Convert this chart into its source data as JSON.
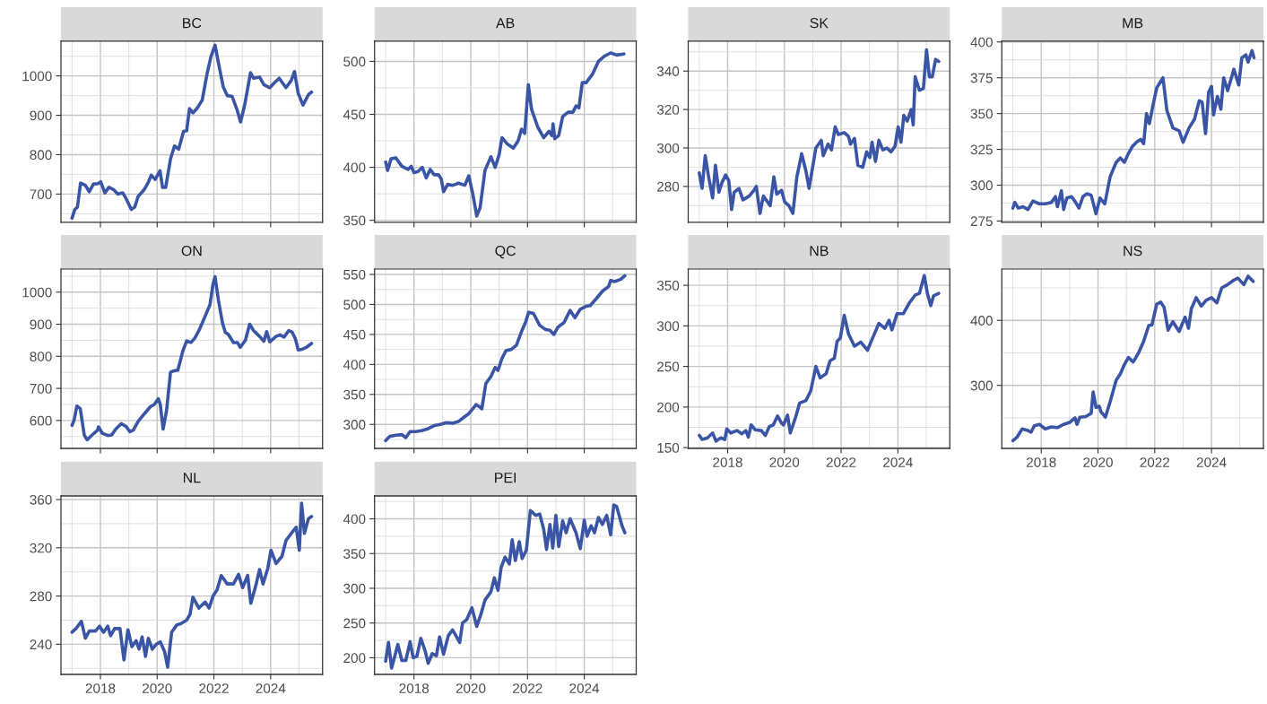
{
  "chart_data": [
    {
      "type": "line",
      "title": "BC",
      "color": "#3a55a5",
      "grid": true,
      "tick_labels": "y",
      "xlim": [
        2016.61,
        2025.83
      ],
      "ylim": [
        628,
        1088
      ],
      "xticks": [
        2018,
        2020,
        2022,
        2024,
        {
          "value": 2017,
          "label": null
        },
        {
          "value": 2019,
          "label": null
        },
        {
          "value": 2021,
          "label": null
        },
        {
          "value": 2023,
          "label": null
        },
        {
          "value": 2025,
          "label": null
        }
      ],
      "yticks": [
        700,
        800,
        900,
        1000,
        {
          "value": 650,
          "label": null
        },
        {
          "value": 750,
          "label": null
        },
        {
          "value": 850,
          "label": null
        },
        {
          "value": 950,
          "label": null
        },
        {
          "value": 1050,
          "label": null
        }
      ],
      "x": [
        2017.0,
        2017.1,
        2017.19,
        2017.3,
        2017.47,
        2017.61,
        2017.76,
        2017.9,
        2018.01,
        2018.16,
        2018.3,
        2018.47,
        2018.61,
        2018.79,
        2018.9,
        2019.09,
        2019.21,
        2019.33,
        2019.54,
        2019.69,
        2019.79,
        2019.93,
        2020.1,
        2020.19,
        2020.3,
        2020.47,
        2020.61,
        2020.76,
        2020.93,
        2021.04,
        2021.14,
        2021.26,
        2021.4,
        2021.59,
        2021.76,
        2021.9,
        2022.04,
        2022.19,
        2022.33,
        2022.47,
        2022.64,
        2022.83,
        2022.94,
        2023.09,
        2023.29,
        2023.4,
        2023.61,
        2023.76,
        2023.97,
        2024.11,
        2024.3,
        2024.54,
        2024.73,
        2024.84,
        2024.97,
        2025.14,
        2025.33,
        2025.44
      ],
      "values": [
        639,
        661,
        667,
        728,
        722,
        706,
        726,
        726,
        731,
        703,
        717,
        711,
        700,
        703,
        689,
        661,
        667,
        694,
        711,
        730,
        748,
        737,
        759,
        717,
        717,
        789,
        822,
        814,
        859,
        861,
        917,
        906,
        917,
        939,
        1006,
        1050,
        1078,
        1022,
        972,
        950,
        948,
        911,
        883,
        928,
        1008,
        994,
        997,
        978,
        970,
        981,
        994,
        970,
        989,
        1011,
        956,
        926,
        952,
        959
      ]
    },
    {
      "type": "line",
      "title": "AB",
      "color": "#3a55a5",
      "grid": true,
      "tick_labels": "y",
      "xlim": [
        2016.61,
        2025.83
      ],
      "ylim": [
        348,
        519
      ],
      "xticks": [
        2018,
        2020,
        2022,
        2024,
        {
          "value": 2017,
          "label": null
        },
        {
          "value": 2019,
          "label": null
        },
        {
          "value": 2021,
          "label": null
        },
        {
          "value": 2023,
          "label": null
        },
        {
          "value": 2025,
          "label": null
        }
      ],
      "yticks": [
        350,
        400,
        450,
        500,
        {
          "value": 375,
          "label": null
        },
        {
          "value": 425,
          "label": null
        },
        {
          "value": 475,
          "label": null
        }
      ],
      "x": [
        2017.0,
        2017.07,
        2017.19,
        2017.36,
        2017.57,
        2017.79,
        2017.9,
        2018.0,
        2018.14,
        2018.29,
        2018.43,
        2018.57,
        2018.71,
        2018.86,
        2018.96,
        2019.04,
        2019.19,
        2019.36,
        2019.57,
        2019.79,
        2019.93,
        2020.07,
        2020.21,
        2020.33,
        2020.5,
        2020.71,
        2020.86,
        2021.0,
        2021.1,
        2021.29,
        2021.5,
        2021.67,
        2021.79,
        2021.9,
        2022.03,
        2022.14,
        2022.36,
        2022.57,
        2022.76,
        2022.86,
        2022.9,
        2022.96,
        2023.1,
        2023.24,
        2023.43,
        2023.6,
        2023.71,
        2023.81,
        2023.93,
        2024.07,
        2024.29,
        2024.5,
        2024.71,
        2024.93,
        2025.14,
        2025.4
      ],
      "values": [
        405,
        397,
        408,
        409,
        401,
        398,
        401,
        395,
        396,
        400,
        390,
        398,
        393,
        393,
        389,
        377,
        384,
        383,
        385,
        383,
        392,
        375,
        354,
        362,
        397,
        410,
        400,
        412,
        428,
        422,
        418,
        425,
        436,
        432,
        478,
        455,
        438,
        428,
        434,
        430,
        441,
        427,
        430,
        448,
        452,
        452,
        458,
        456,
        480,
        480,
        488,
        500,
        505,
        508,
        506,
        507
      ]
    },
    {
      "type": "line",
      "title": "SK",
      "color": "#3a55a5",
      "grid": true,
      "tick_labels": "y",
      "xlim": [
        2016.61,
        2025.83
      ],
      "ylim": [
        261.3,
        355.5
      ],
      "xticks": [
        2018,
        2020,
        2022,
        2024,
        {
          "value": 2017,
          "label": null
        },
        {
          "value": 2019,
          "label": null
        },
        {
          "value": 2021,
          "label": null
        },
        {
          "value": 2023,
          "label": null
        },
        {
          "value": 2025,
          "label": null
        }
      ],
      "yticks": [
        280,
        300,
        320,
        340,
        {
          "value": 270,
          "label": null
        },
        {
          "value": 290,
          "label": null
        },
        {
          "value": 310,
          "label": null
        },
        {
          "value": 330,
          "label": null
        },
        {
          "value": 350,
          "label": null
        }
      ],
      "x": [
        2017.0,
        2017.1,
        2017.21,
        2017.33,
        2017.47,
        2017.57,
        2017.69,
        2017.8,
        2017.93,
        2018.04,
        2018.14,
        2018.23,
        2018.4,
        2018.54,
        2018.76,
        2018.93,
        2019.01,
        2019.14,
        2019.26,
        2019.5,
        2019.63,
        2019.73,
        2019.9,
        2020.01,
        2020.16,
        2020.3,
        2020.44,
        2020.61,
        2020.76,
        2020.87,
        2021.11,
        2021.3,
        2021.37,
        2021.54,
        2021.66,
        2021.79,
        2021.9,
        2022.11,
        2022.26,
        2022.33,
        2022.47,
        2022.59,
        2022.76,
        2022.9,
        2023.01,
        2023.09,
        2023.21,
        2023.33,
        2023.47,
        2023.61,
        2023.76,
        2023.9,
        2024.01,
        2024.11,
        2024.21,
        2024.33,
        2024.47,
        2024.54,
        2024.61,
        2024.76,
        2024.9,
        2025.01,
        2025.11,
        2025.21,
        2025.33,
        2025.44
      ],
      "values": [
        287,
        279,
        296,
        285,
        274,
        291,
        277,
        282,
        286,
        283,
        268,
        277,
        279,
        273,
        275,
        278,
        280,
        266,
        275,
        270,
        285,
        276,
        278,
        272,
        270,
        266,
        285,
        297,
        288,
        279,
        300,
        304,
        296,
        302,
        299,
        311,
        307,
        308,
        306,
        302,
        305,
        291,
        290,
        298,
        295,
        303,
        293,
        304,
        299,
        300,
        298,
        301,
        311,
        303,
        317,
        314,
        320,
        312,
        337,
        330,
        331,
        351,
        337,
        337,
        346,
        345
      ]
    },
    {
      "type": "line",
      "title": "MB",
      "color": "#3a55a5",
      "grid": true,
      "tick_labels": "y",
      "xlim": [
        2016.61,
        2025.83
      ],
      "ylim": [
        274,
        400.5
      ],
      "xticks": [
        2018,
        2020,
        2022,
        2024,
        {
          "value": 2017,
          "label": null
        },
        {
          "value": 2019,
          "label": null
        },
        {
          "value": 2021,
          "label": null
        },
        {
          "value": 2023,
          "label": null
        },
        {
          "value": 2025,
          "label": null
        }
      ],
      "yticks": [
        275,
        300,
        325,
        350,
        375,
        400,
        {
          "value": 287.5,
          "label": null
        },
        {
          "value": 312.5,
          "label": null
        },
        {
          "value": 337.5,
          "label": null
        },
        {
          "value": 362.5,
          "label": null
        },
        {
          "value": 387.5,
          "label": null
        }
      ],
      "x": [
        2017.0,
        2017.07,
        2017.19,
        2017.36,
        2017.53,
        2017.71,
        2017.93,
        2018.14,
        2018.36,
        2018.5,
        2018.57,
        2018.71,
        2018.79,
        2018.9,
        2019.07,
        2019.21,
        2019.33,
        2019.47,
        2019.61,
        2019.76,
        2019.93,
        2020.07,
        2020.24,
        2020.43,
        2020.64,
        2020.79,
        2020.93,
        2021.07,
        2021.21,
        2021.36,
        2021.5,
        2021.61,
        2021.71,
        2021.81,
        2021.93,
        2022.07,
        2022.29,
        2022.43,
        2022.64,
        2022.86,
        2023.0,
        2023.21,
        2023.4,
        2023.57,
        2023.67,
        2023.79,
        2023.9,
        2024.0,
        2024.07,
        2024.21,
        2024.33,
        2024.43,
        2024.57,
        2024.79,
        2024.96,
        2025.07,
        2025.21,
        2025.29,
        2025.43,
        2025.5
      ],
      "values": [
        284,
        288,
        284,
        285,
        283,
        289,
        287,
        287,
        288,
        292,
        285,
        296,
        283,
        291,
        292,
        288,
        284,
        292,
        294,
        293,
        280,
        291,
        287,
        306,
        316,
        319,
        316,
        322,
        327,
        330,
        332,
        329,
        350,
        343,
        355,
        368,
        375,
        352,
        340,
        338,
        330,
        340,
        346,
        359,
        358,
        336,
        365,
        369,
        349,
        362,
        353,
        375,
        366,
        381,
        370,
        389,
        391,
        386,
        394,
        389
      ]
    },
    {
      "type": "line",
      "title": "ON",
      "color": "#3a55a5",
      "grid": true,
      "tick_labels": "y",
      "xlim": [
        2016.61,
        2025.83
      ],
      "ylim": [
        513,
        1072
      ],
      "xticks": [
        2018,
        2020,
        2022,
        2024,
        {
          "value": 2017,
          "label": null
        },
        {
          "value": 2019,
          "label": null
        },
        {
          "value": 2021,
          "label": null
        },
        {
          "value": 2023,
          "label": null
        },
        {
          "value": 2025,
          "label": null
        }
      ],
      "yticks": [
        600,
        700,
        800,
        900,
        1000,
        {
          "value": 550,
          "label": null
        },
        {
          "value": 650,
          "label": null
        },
        {
          "value": 750,
          "label": null
        },
        {
          "value": 850,
          "label": null
        },
        {
          "value": 950,
          "label": null
        },
        {
          "value": 1050,
          "label": null
        }
      ],
      "x": [
        2017.0,
        2017.07,
        2017.17,
        2017.29,
        2017.43,
        2017.53,
        2017.71,
        2017.9,
        2017.93,
        2018.07,
        2018.26,
        2018.4,
        2018.54,
        2018.73,
        2018.9,
        2019.04,
        2019.16,
        2019.33,
        2019.54,
        2019.76,
        2019.9,
        2020.04,
        2020.11,
        2020.21,
        2020.33,
        2020.47,
        2020.59,
        2020.73,
        2020.9,
        2021.04,
        2021.19,
        2021.33,
        2021.47,
        2021.69,
        2021.86,
        2021.97,
        2022.04,
        2022.16,
        2022.3,
        2022.4,
        2022.51,
        2022.69,
        2022.83,
        2022.93,
        2023.11,
        2023.26,
        2023.4,
        2023.61,
        2023.76,
        2023.86,
        2023.97,
        2024.19,
        2024.33,
        2024.47,
        2024.64,
        2024.76,
        2024.87,
        2024.97,
        2025.11,
        2025.26,
        2025.44
      ],
      "values": [
        585,
        600,
        645,
        637,
        555,
        540,
        555,
        570,
        580,
        560,
        553,
        555,
        573,
        590,
        582,
        565,
        570,
        597,
        620,
        643,
        650,
        668,
        650,
        573,
        630,
        750,
        755,
        757,
        815,
        848,
        843,
        857,
        880,
        925,
        960,
        1025,
        1048,
        975,
        905,
        875,
        868,
        843,
        843,
        828,
        850,
        900,
        880,
        862,
        847,
        877,
        845,
        862,
        867,
        860,
        880,
        875,
        855,
        820,
        822,
        828,
        840
      ]
    },
    {
      "type": "line",
      "title": "QC",
      "color": "#3a55a5",
      "grid": true,
      "tick_labels": "y",
      "xlim": [
        2016.61,
        2025.83
      ],
      "ylim": [
        260,
        559
      ],
      "xticks": [
        2018,
        2020,
        2022,
        2024,
        {
          "value": 2017,
          "label": null
        },
        {
          "value": 2019,
          "label": null
        },
        {
          "value": 2021,
          "label": null
        },
        {
          "value": 2023,
          "label": null
        },
        {
          "value": 2025,
          "label": null
        }
      ],
      "yticks": [
        300,
        350,
        400,
        450,
        500,
        550,
        {
          "value": 275,
          "label": null
        },
        {
          "value": 325,
          "label": null
        },
        {
          "value": 375,
          "label": null
        },
        {
          "value": 425,
          "label": null
        },
        {
          "value": 475,
          "label": null
        },
        {
          "value": 525,
          "label": null
        }
      ],
      "x": [
        2017.0,
        2017.14,
        2017.36,
        2017.57,
        2017.71,
        2017.86,
        2018.07,
        2018.29,
        2018.5,
        2018.71,
        2018.93,
        2019.14,
        2019.36,
        2019.57,
        2019.76,
        2019.93,
        2020.07,
        2020.19,
        2020.29,
        2020.39,
        2020.53,
        2020.71,
        2020.86,
        2020.96,
        2021.1,
        2021.24,
        2021.43,
        2021.61,
        2021.79,
        2021.93,
        2022.04,
        2022.21,
        2022.43,
        2022.64,
        2022.79,
        2022.93,
        2023.07,
        2023.29,
        2023.5,
        2023.67,
        2023.86,
        2024.07,
        2024.21,
        2024.43,
        2024.64,
        2024.86,
        2024.93,
        2025.07,
        2025.29,
        2025.43
      ],
      "values": [
        273,
        280,
        282,
        283,
        278,
        288,
        288,
        290,
        293,
        298,
        300,
        303,
        302,
        305,
        312,
        318,
        326,
        333,
        330,
        326,
        368,
        380,
        395,
        390,
        410,
        423,
        425,
        432,
        455,
        470,
        487,
        485,
        465,
        458,
        457,
        450,
        462,
        470,
        490,
        478,
        492,
        497,
        498,
        510,
        522,
        530,
        540,
        538,
        542,
        548
      ]
    },
    {
      "type": "line",
      "title": "NB",
      "color": "#3a55a5",
      "grid": true,
      "xlim": [
        2016.61,
        2025.83
      ],
      "ylim": [
        149,
        370
      ],
      "xticks": [
        2018,
        2020,
        2022,
        2024,
        {
          "value": 2017,
          "label": null
        },
        {
          "value": 2019,
          "label": null
        },
        {
          "value": 2021,
          "label": null
        },
        {
          "value": 2023,
          "label": null
        },
        {
          "value": 2025,
          "label": null
        }
      ],
      "yticks": [
        150,
        200,
        250,
        300,
        350,
        {
          "value": 175,
          "label": null
        },
        {
          "value": 225,
          "label": null
        },
        {
          "value": 275,
          "label": null
        },
        {
          "value": 325,
          "label": null
        }
      ],
      "x": [
        2017.0,
        2017.1,
        2017.29,
        2017.47,
        2017.59,
        2017.76,
        2017.9,
        2017.97,
        2018.11,
        2018.33,
        2018.5,
        2018.64,
        2018.73,
        2018.83,
        2018.97,
        2019.19,
        2019.33,
        2019.47,
        2019.61,
        2019.76,
        2019.9,
        2019.97,
        2020.11,
        2020.21,
        2020.4,
        2020.54,
        2020.76,
        2020.93,
        2021.11,
        2021.26,
        2021.47,
        2021.61,
        2021.76,
        2021.86,
        2021.97,
        2022.11,
        2022.26,
        2022.47,
        2022.69,
        2022.93,
        2023.11,
        2023.33,
        2023.54,
        2023.69,
        2023.79,
        2023.97,
        2024.19,
        2024.4,
        2024.61,
        2024.76,
        2024.93,
        2025.04,
        2025.16,
        2025.26,
        2025.44
      ],
      "values": [
        165,
        160,
        162,
        168,
        158,
        162,
        160,
        173,
        168,
        171,
        167,
        171,
        163,
        178,
        172,
        171,
        165,
        176,
        178,
        189,
        180,
        178,
        190,
        168,
        188,
        205,
        208,
        220,
        250,
        236,
        241,
        257,
        260,
        281,
        285,
        313,
        290,
        275,
        280,
        270,
        285,
        303,
        297,
        307,
        295,
        315,
        315,
        328,
        338,
        340,
        362,
        340,
        325,
        337,
        340
      ]
    },
    {
      "type": "line",
      "title": "NS",
      "color": "#3a55a5",
      "grid": true,
      "xlim": [
        2016.61,
        2025.83
      ],
      "ylim": [
        203,
        479
      ],
      "xticks": [
        2018,
        2020,
        2022,
        2024,
        {
          "value": 2017,
          "label": null
        },
        {
          "value": 2019,
          "label": null
        },
        {
          "value": 2021,
          "label": null
        },
        {
          "value": 2023,
          "label": null
        },
        {
          "value": 2025,
          "label": null
        }
      ],
      "yticks": [
        300,
        400,
        {
          "value": 250,
          "label": null
        },
        {
          "value": 350,
          "label": null
        },
        {
          "value": 450,
          "label": null
        }
      ],
      "x": [
        2017.0,
        2017.14,
        2017.33,
        2017.5,
        2017.64,
        2017.76,
        2017.93,
        2018.14,
        2018.36,
        2018.57,
        2018.79,
        2019.0,
        2019.19,
        2019.26,
        2019.36,
        2019.57,
        2019.76,
        2019.83,
        2019.93,
        2020.04,
        2020.11,
        2020.26,
        2020.43,
        2020.64,
        2020.79,
        2020.93,
        2021.07,
        2021.24,
        2021.43,
        2021.61,
        2021.79,
        2021.9,
        2022.07,
        2022.21,
        2022.33,
        2022.47,
        2022.64,
        2022.86,
        2023.07,
        2023.19,
        2023.29,
        2023.46,
        2023.64,
        2023.81,
        2024.0,
        2024.19,
        2024.36,
        2024.57,
        2024.79,
        2024.93,
        2025.14,
        2025.29,
        2025.47
      ],
      "values": [
        215,
        220,
        233,
        231,
        228,
        238,
        240,
        233,
        236,
        235,
        240,
        243,
        250,
        240,
        251,
        252,
        257,
        290,
        266,
        268,
        259,
        251,
        275,
        308,
        318,
        332,
        343,
        336,
        350,
        368,
        392,
        393,
        425,
        428,
        420,
        385,
        398,
        383,
        405,
        388,
        418,
        435,
        422,
        431,
        435,
        427,
        450,
        455,
        462,
        465,
        455,
        468,
        460
      ]
    },
    {
      "type": "line",
      "title": "NL",
      "color": "#3a55a5",
      "grid": true,
      "xlim": [
        2016.61,
        2025.83
      ],
      "ylim": [
        215,
        363
      ],
      "xticks": [
        2018,
        2020,
        2022,
        2024,
        {
          "value": 2017,
          "label": null
        },
        {
          "value": 2019,
          "label": null
        },
        {
          "value": 2021,
          "label": null
        },
        {
          "value": 2023,
          "label": null
        },
        {
          "value": 2025,
          "label": null
        }
      ],
      "yticks": [
        240,
        280,
        320,
        360,
        {
          "value": 220,
          "label": null
        },
        {
          "value": 260,
          "label": null
        },
        {
          "value": 300,
          "label": null
        },
        {
          "value": 340,
          "label": null
        }
      ],
      "x": [
        2017.0,
        2017.14,
        2017.33,
        2017.47,
        2017.61,
        2017.83,
        2017.97,
        2018.11,
        2018.26,
        2018.36,
        2018.5,
        2018.69,
        2018.83,
        2018.97,
        2019.11,
        2019.26,
        2019.36,
        2019.47,
        2019.59,
        2019.69,
        2019.83,
        2019.97,
        2020.11,
        2020.26,
        2020.37,
        2020.51,
        2020.69,
        2020.83,
        2021.04,
        2021.16,
        2021.26,
        2021.47,
        2021.69,
        2021.83,
        2021.97,
        2022.11,
        2022.26,
        2022.47,
        2022.69,
        2022.87,
        2023.01,
        2023.19,
        2023.3,
        2023.47,
        2023.61,
        2023.73,
        2023.9,
        2024.01,
        2024.19,
        2024.4,
        2024.54,
        2024.76,
        2024.9,
        2025.01,
        2025.09,
        2025.19,
        2025.33,
        2025.44
      ],
      "values": [
        250,
        253,
        259,
        245,
        251,
        251,
        255,
        250,
        255,
        247,
        253,
        253,
        227,
        252,
        238,
        243,
        236,
        246,
        230,
        245,
        236,
        240,
        242,
        234,
        221,
        250,
        256,
        257,
        260,
        265,
        279,
        270,
        275,
        270,
        280,
        285,
        297,
        290,
        290,
        298,
        287,
        297,
        274,
        288,
        302,
        290,
        303,
        318,
        307,
        313,
        326,
        333,
        337,
        318,
        357,
        332,
        344,
        346
      ]
    },
    {
      "type": "line",
      "title": "PEI",
      "color": "#3a55a5",
      "grid": true,
      "xlim": [
        2016.61,
        2025.83
      ],
      "ylim": [
        176,
        433
      ],
      "xticks": [
        2018,
        2020,
        2022,
        2024,
        {
          "value": 2017,
          "label": null
        },
        {
          "value": 2019,
          "label": null
        },
        {
          "value": 2021,
          "label": null
        },
        {
          "value": 2023,
          "label": null
        },
        {
          "value": 2025,
          "label": null
        }
      ],
      "yticks": [
        200,
        250,
        300,
        350,
        400,
        {
          "value": 225,
          "label": null
        },
        {
          "value": 275,
          "label": null
        },
        {
          "value": 325,
          "label": null
        },
        {
          "value": 375,
          "label": null
        },
        {
          "value": 425,
          "label": null
        }
      ],
      "x": [
        2017.0,
        2017.1,
        2017.21,
        2017.43,
        2017.57,
        2017.71,
        2017.86,
        2017.97,
        2018.1,
        2018.24,
        2018.39,
        2018.5,
        2018.64,
        2018.79,
        2018.9,
        2019.04,
        2019.21,
        2019.36,
        2019.5,
        2019.61,
        2019.71,
        2019.86,
        2020.04,
        2020.21,
        2020.36,
        2020.5,
        2020.71,
        2020.83,
        2020.96,
        2021.07,
        2021.21,
        2021.36,
        2021.46,
        2021.57,
        2021.71,
        2021.81,
        2021.96,
        2022.1,
        2022.29,
        2022.43,
        2022.57,
        2022.67,
        2022.79,
        2022.89,
        2023.0,
        2023.1,
        2023.24,
        2023.36,
        2023.5,
        2023.71,
        2023.86,
        2024.0,
        2024.1,
        2024.24,
        2024.36,
        2024.5,
        2024.64,
        2024.79,
        2024.93,
        2025.04,
        2025.14,
        2025.33,
        2025.43
      ],
      "values": [
        195,
        222,
        185,
        219,
        196,
        196,
        223,
        200,
        202,
        228,
        210,
        192,
        206,
        203,
        230,
        205,
        232,
        240,
        230,
        222,
        250,
        255,
        272,
        245,
        263,
        283,
        295,
        315,
        297,
        330,
        345,
        335,
        370,
        340,
        367,
        343,
        355,
        412,
        405,
        407,
        385,
        356,
        392,
        358,
        405,
        360,
        397,
        380,
        400,
        380,
        357,
        398,
        375,
        390,
        380,
        402,
        392,
        405,
        377,
        420,
        418,
        390,
        380
      ]
    }
  ]
}
